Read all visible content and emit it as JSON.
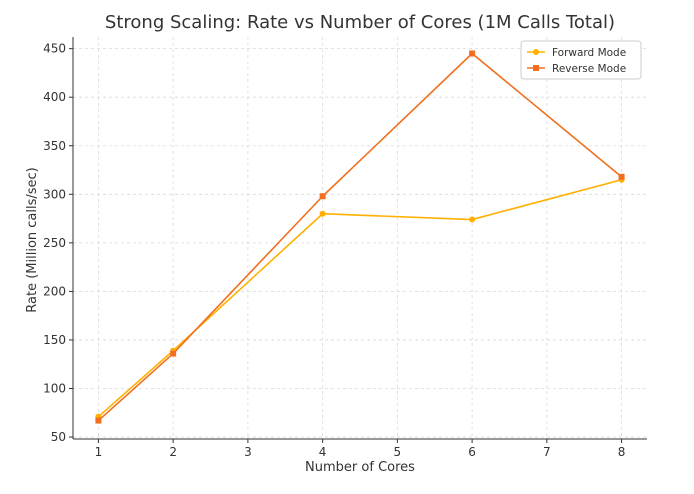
{
  "chart_data": {
    "type": "line",
    "title": "Strong Scaling: Rate vs Number of Cores (1M Calls Total)",
    "xlabel": "Number of Cores",
    "ylabel": "Rate (Million calls/sec)",
    "x_ticks": [
      1,
      2,
      3,
      4,
      5,
      6,
      7,
      8
    ],
    "y_ticks": [
      50,
      100,
      150,
      200,
      250,
      300,
      350,
      400,
      450
    ],
    "xlim": [
      0.66,
      8.34
    ],
    "ylim": [
      48,
      462
    ],
    "grid": true,
    "legend_position": "top-right",
    "series": [
      {
        "name": "Forward Mode",
        "color": "#FFB000",
        "marker": "circle",
        "x": [
          1,
          2,
          4,
          6,
          8
        ],
        "y": [
          71,
          139,
          280,
          274,
          315
        ]
      },
      {
        "name": "Reverse Mode",
        "color": "#F07020",
        "marker": "square",
        "x": [
          1,
          2,
          4,
          6,
          8
        ],
        "y": [
          67,
          136,
          298,
          445,
          318
        ]
      }
    ]
  }
}
